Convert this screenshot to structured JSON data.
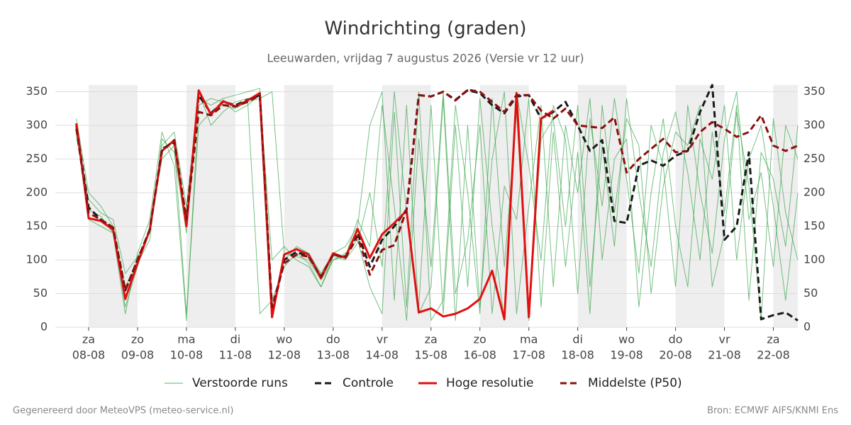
{
  "chart_data": {
    "type": "line",
    "title": "Windrichting (graden)",
    "subtitle": "Leeuwarden, vrijdag  7 augustus 2026 (Versie vr 12 uur)",
    "footer_left": "Gegenereerd door MeteoVPS (meteo-service.nl)",
    "footer_right": "Bron: ECMWF AIFS/KNMI Ens",
    "xlim": [
      -0.5,
      14.5
    ],
    "ylim": [
      0,
      360
    ],
    "yticks": [
      0,
      50,
      100,
      150,
      200,
      250,
      300,
      350
    ],
    "xticks": [
      {
        "value": 0,
        "label": [
          "za",
          "08-08"
        ]
      },
      {
        "value": 1,
        "label": [
          "zo",
          "09-08"
        ]
      },
      {
        "value": 2,
        "label": [
          "ma",
          "10-08"
        ]
      },
      {
        "value": 3,
        "label": [
          "di",
          "11-08"
        ]
      },
      {
        "value": 4,
        "label": [
          "wo",
          "12-08"
        ]
      },
      {
        "value": 5,
        "label": [
          "do",
          "13-08"
        ]
      },
      {
        "value": 6,
        "label": [
          "vr",
          "14-08"
        ]
      },
      {
        "value": 7,
        "label": [
          "za",
          "15-08"
        ]
      },
      {
        "value": 8,
        "label": [
          "zo",
          "16-08"
        ]
      },
      {
        "value": 9,
        "label": [
          "ma",
          "17-08"
        ]
      },
      {
        "value": 10,
        "label": [
          "di",
          "18-08"
        ]
      },
      {
        "value": 11,
        "label": [
          "wo",
          "19-08"
        ]
      },
      {
        "value": 12,
        "label": [
          "do",
          "20-08"
        ]
      },
      {
        "value": 13,
        "label": [
          "vr",
          "21-08"
        ]
      },
      {
        "value": 14,
        "label": [
          "za",
          "22-08"
        ]
      }
    ],
    "grid": true,
    "x": [
      -0.25,
      0,
      0.25,
      0.5,
      0.75,
      1,
      1.25,
      1.5,
      1.75,
      2,
      2.25,
      2.5,
      2.75,
      3,
      3.25,
      3.5,
      3.75,
      4,
      4.25,
      4.5,
      4.75,
      5,
      5.25,
      5.5,
      5.75,
      6,
      6.25,
      6.5,
      6.75,
      7,
      7.25,
      7.5,
      7.75,
      8,
      8.25,
      8.5,
      8.75,
      9,
      9.25,
      9.5,
      9.75,
      10,
      10.25,
      10.5,
      10.75,
      11,
      11.25,
      11.5,
      11.75,
      12,
      12.25,
      12.5,
      12.75,
      13,
      13.25,
      13.5,
      13.75,
      14,
      14.25,
      14.5
    ],
    "ensemble": {
      "name": "Verstoorde runs",
      "color": "#2ca040",
      "runs": [
        [
          290,
          190,
          170,
          160,
          80,
          105,
          140,
          270,
          290,
          180,
          340,
          330,
          340,
          345,
          350,
          355,
          30,
          100,
          120,
          110,
          80,
          110,
          120,
          150,
          300,
          350,
          40,
          330,
          20,
          60,
          340,
          10,
          300,
          30,
          250,
          350,
          20,
          180,
          330,
          60,
          300,
          200,
          340,
          100,
          250,
          280,
          30,
          200,
          310,
          150,
          60,
          280,
          220,
          330,
          100,
          250,
          300,
          180,
          40,
          200
        ],
        [
          310,
          200,
          180,
          150,
          30,
          90,
          150,
          250,
          270,
          20,
          300,
          320,
          330,
          325,
          335,
          340,
          350,
          110,
          105,
          100,
          70,
          100,
          110,
          130,
          60,
          20,
          320,
          30,
          350,
          10,
          40,
          330,
          200,
          20,
          340,
          90,
          320,
          10,
          280,
          310,
          150,
          330,
          60,
          270,
          120,
          340,
          200,
          90,
          260,
          320,
          230,
          100,
          290,
          170,
          330,
          40,
          260,
          220,
          120,
          300
        ],
        [
          285,
          175,
          165,
          140,
          60,
          95,
          130,
          280,
          260,
          140,
          350,
          300,
          320,
          335,
          340,
          20,
          40,
          90,
          110,
          95,
          60,
          105,
          100,
          125,
          200,
          90,
          350,
          170,
          30,
          330,
          20,
          300,
          60,
          340,
          150,
          10,
          350,
          240,
          100,
          330,
          280,
          50,
          310,
          180,
          340,
          220,
          80,
          300,
          240,
          60,
          330,
          200,
          110,
          280,
          350,
          160,
          230,
          90,
          300,
          250
        ],
        [
          300,
          160,
          150,
          140,
          20,
          110,
          160,
          290,
          240,
          10,
          330,
          340,
          335,
          320,
          330,
          345,
          100,
          120,
          100,
          90,
          60,
          100,
          105,
          160,
          120,
          330,
          180,
          10,
          280,
          90,
          350,
          50,
          130,
          300,
          20,
          210,
          160,
          340,
          30,
          290,
          90,
          260,
          20,
          330,
          170,
          310,
          270,
          50,
          210,
          290,
          270,
          330,
          60,
          140,
          320,
          210,
          10,
          310,
          170,
          100
        ]
      ]
    },
    "series": [
      {
        "name": "Controle",
        "color": "#1a1a1a",
        "dash": true,
        "values": [
          300,
          178,
          160,
          148,
          55,
          100,
          145,
          265,
          275,
          160,
          345,
          318,
          335,
          330,
          338,
          345,
          20,
          100,
          112,
          105,
          75,
          108,
          105,
          140,
          90,
          130,
          150,
          175,
          345,
          343,
          350,
          338,
          352,
          348,
          330,
          318,
          343,
          345,
          310,
          320,
          335,
          300,
          262,
          278,
          158,
          155,
          240,
          248,
          240,
          255,
          262,
          320,
          360,
          130,
          150,
          260,
          12,
          18,
          22,
          10
        ]
      },
      {
        "name": "Hoge resolutie",
        "color": "#e01010",
        "dash": false,
        "values": [
          303,
          162,
          158,
          145,
          42,
          95,
          145,
          262,
          278,
          150,
          352,
          316,
          336,
          328,
          337,
          348,
          15,
          108,
          116,
          108,
          73,
          110,
          103,
          146,
          103,
          138,
          155,
          173,
          22,
          28,
          16,
          20,
          28,
          42,
          84,
          12,
          348,
          15,
          310,
          322,
          null,
          null,
          null,
          null,
          null,
          null,
          null,
          null,
          null,
          null,
          null,
          null,
          null,
          null,
          null,
          null,
          null,
          null,
          null,
          null
        ]
      },
      {
        "name": "Middelste (P50)",
        "color": "#8b1010",
        "dash": true,
        "values": [
          295,
          170,
          160,
          148,
          55,
          100,
          145,
          262,
          278,
          160,
          320,
          315,
          330,
          328,
          335,
          345,
          30,
          95,
          108,
          105,
          75,
          108,
          103,
          135,
          78,
          115,
          122,
          175,
          345,
          343,
          350,
          337,
          353,
          350,
          335,
          320,
          345,
          345,
          322,
          310,
          325,
          300,
          298,
          296,
          312,
          230,
          250,
          265,
          280,
          260,
          262,
          290,
          305,
          295,
          283,
          290,
          315,
          270,
          262,
          270
        ]
      }
    ]
  }
}
